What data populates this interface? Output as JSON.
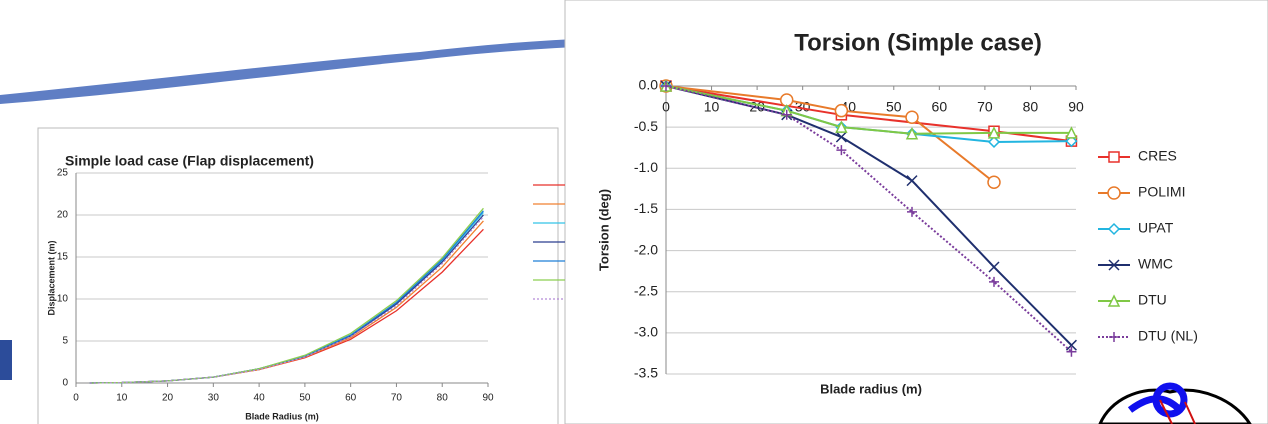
{
  "chart_data": [
    {
      "type": "line",
      "title": "Simple load case (Flap displacement)",
      "x_label": "Blade Radius (m)",
      "y_label": "Displacement (m)",
      "xlim": [
        0,
        90
      ],
      "xticks": [
        0,
        10,
        20,
        30,
        40,
        50,
        60,
        70,
        80,
        90
      ],
      "ylim": [
        0,
        25
      ],
      "yticks": [
        0,
        5,
        10,
        15,
        20,
        25
      ],
      "grid": true,
      "series": [
        {
          "color": "#e8312b",
          "x": [
            3,
            10,
            20,
            30,
            40,
            50,
            60,
            70,
            80,
            89
          ],
          "values": [
            0,
            0.05,
            0.25,
            0.7,
            1.6,
            3.0,
            5.2,
            8.6,
            13.2,
            18.3
          ]
        },
        {
          "color": "#f08030",
          "x": [
            3,
            10,
            20,
            30,
            40,
            50,
            60,
            70,
            80,
            89
          ],
          "values": [
            0,
            0.05,
            0.25,
            0.7,
            1.6,
            3.1,
            5.4,
            9.0,
            13.8,
            19.3
          ]
        },
        {
          "color": "#33c3e8",
          "x": [
            3,
            10,
            20,
            30,
            40,
            50,
            60,
            70,
            80,
            89
          ],
          "values": [
            0,
            0.05,
            0.25,
            0.7,
            1.7,
            3.2,
            5.7,
            9.5,
            14.6,
            20.3
          ]
        },
        {
          "color": "#2a3f8f",
          "x": [
            3,
            10,
            20,
            30,
            40,
            50,
            60,
            70,
            80,
            89
          ],
          "values": [
            0,
            0.05,
            0.25,
            0.7,
            1.7,
            3.2,
            5.6,
            9.4,
            14.4,
            20.0
          ]
        },
        {
          "color": "#1f7fd6",
          "x": [
            3,
            10,
            20,
            30,
            40,
            50,
            60,
            70,
            80,
            89
          ],
          "values": [
            0,
            0.05,
            0.25,
            0.7,
            1.7,
            3.2,
            5.7,
            9.6,
            14.7,
            20.5
          ]
        },
        {
          "color": "#8ccf50",
          "x": [
            3,
            10,
            20,
            30,
            40,
            50,
            60,
            70,
            80,
            89
          ],
          "values": [
            0,
            0.05,
            0.25,
            0.7,
            1.7,
            3.3,
            5.9,
            9.8,
            14.9,
            20.8
          ]
        },
        {
          "color": "#b58ad6",
          "dashed": true,
          "x": [
            3,
            10,
            20,
            30,
            40,
            50,
            60,
            70,
            80,
            89
          ],
          "values": [
            0,
            0.05,
            0.25,
            0.7,
            1.6,
            3.1,
            5.5,
            9.2,
            14.2,
            19.8
          ]
        }
      ]
    },
    {
      "type": "line",
      "title": "Torsion (Simple case)",
      "x_label": "Blade radius (m)",
      "y_label": "Torsion (deg)",
      "xlim": [
        0,
        90
      ],
      "xticks": [
        0,
        10,
        20,
        30,
        40,
        50,
        60,
        70,
        80,
        90
      ],
      "ylim": [
        -3.5,
        0
      ],
      "yticks": [
        {
          "value": 0,
          "label": "0.0"
        },
        -0.5,
        {
          "value": -1,
          "label": "-1.0"
        },
        -1.5,
        {
          "value": -2,
          "label": "-2.0"
        },
        -2.5,
        {
          "value": -3,
          "label": "-3.0"
        },
        -3.5
      ],
      "grid": true,
      "series": [
        {
          "name": "CRES",
          "color": "#e8312b",
          "marker": "square",
          "x": [
            0,
            38.5,
            72,
            89
          ],
          "values": [
            0,
            -0.35,
            -0.55,
            -0.67
          ]
        },
        {
          "name": "POLIMI",
          "color": "#e87a2a",
          "marker": "circle",
          "x": [
            0,
            26.5,
            38.5,
            54,
            72
          ],
          "values": [
            0,
            -0.17,
            -0.3,
            -0.38,
            -1.17
          ]
        },
        {
          "name": "UPAT",
          "color": "#22b5e0",
          "marker": "diamond",
          "x": [
            0,
            26.5,
            38.5,
            54,
            72,
            89
          ],
          "values": [
            0,
            -0.3,
            -0.5,
            -0.58,
            -0.68,
            -0.67
          ]
        },
        {
          "name": "WMC",
          "color": "#1f2f6e",
          "marker": "x",
          "x": [
            0,
            26.5,
            38.5,
            54,
            72,
            89
          ],
          "values": [
            0,
            -0.35,
            -0.62,
            -1.15,
            -2.2,
            -3.15
          ]
        },
        {
          "name": "DTU",
          "color": "#80c846",
          "marker": "triangle",
          "x": [
            0,
            26.5,
            38.5,
            54,
            72,
            89
          ],
          "values": [
            0,
            -0.3,
            -0.5,
            -0.58,
            -0.57,
            -0.57
          ]
        },
        {
          "name": "DTU (NL)",
          "color": "#7a3c9c",
          "marker": "plus",
          "dashed": true,
          "x": [
            0,
            26.5,
            38.5,
            54,
            72,
            89
          ],
          "values": [
            0,
            -0.35,
            -0.78,
            -1.53,
            -2.38,
            -3.23
          ]
        }
      ]
    }
  ]
}
